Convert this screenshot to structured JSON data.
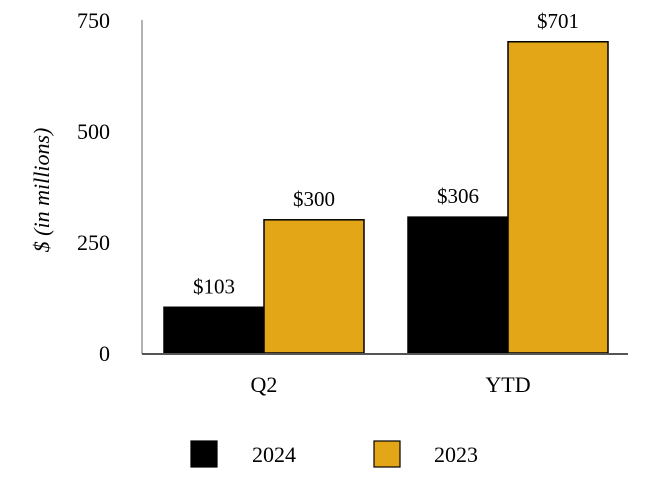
{
  "chart_data": {
    "type": "bar",
    "title": "",
    "xlabel": "",
    "ylabel": "$ (in millions)",
    "ylim": [
      0,
      750
    ],
    "yticks": [
      0,
      250,
      500,
      750
    ],
    "categories": [
      "Q2",
      "YTD"
    ],
    "series": [
      {
        "name": "2024",
        "color": "#000000",
        "values": [
          103,
          306
        ],
        "labels": [
          "$103",
          "$306"
        ]
      },
      {
        "name": "2023",
        "color": "#E2A616",
        "values": [
          300,
          701
        ],
        "labels": [
          "$300",
          "$701"
        ]
      }
    ],
    "grid": false,
    "legend": "bottom-center"
  }
}
